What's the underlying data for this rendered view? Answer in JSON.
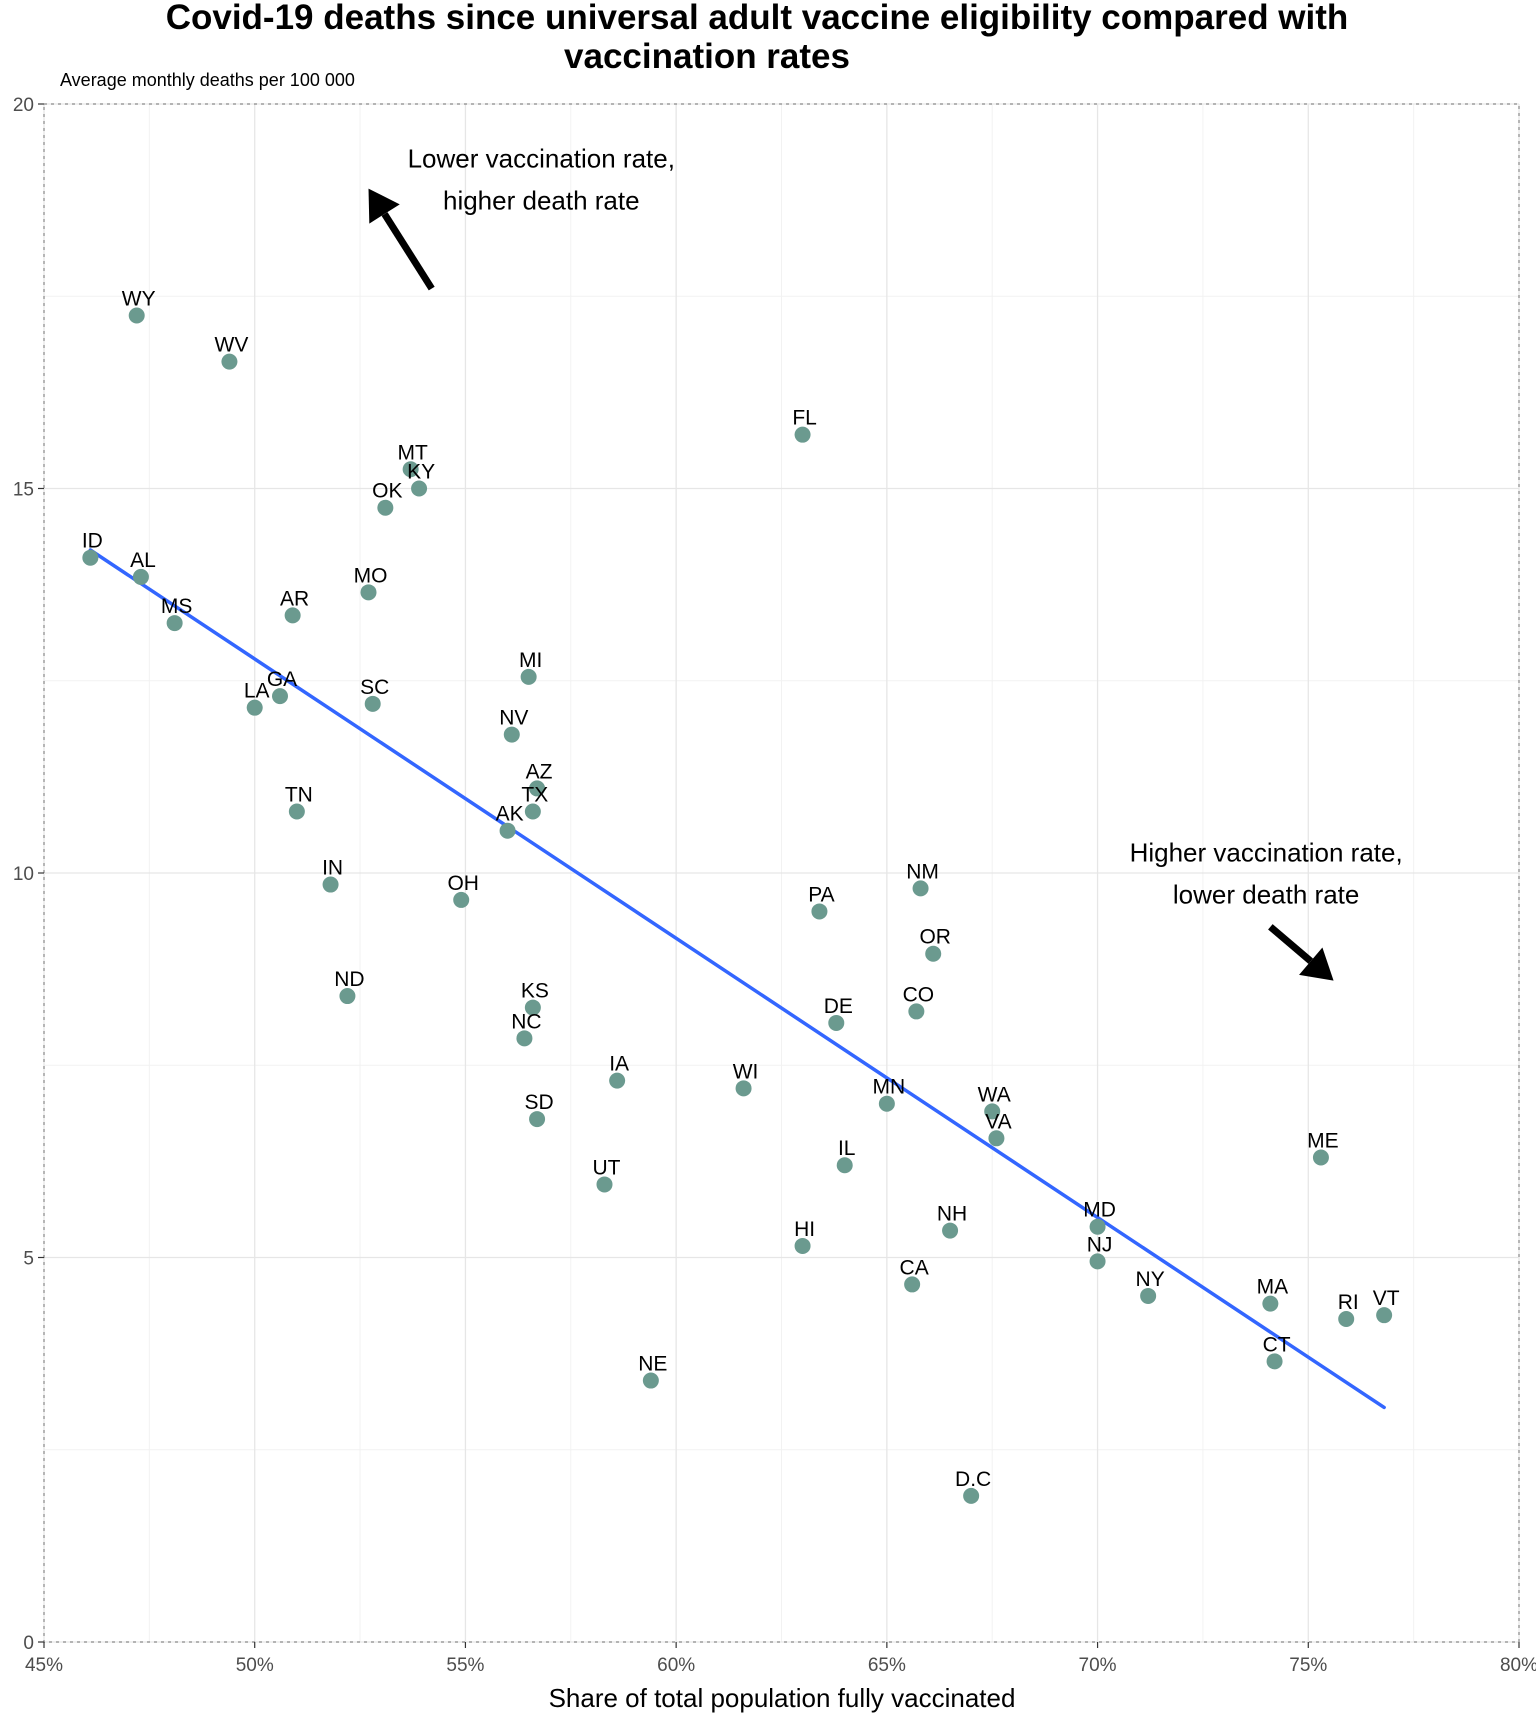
{
  "chart_data": {
    "type": "scatter",
    "title": "Covid-19 deaths since universal adult vaccine eligibility compared with vaccination rates",
    "subtitle": "Average monthly deaths per 100 000",
    "xlabel": "Share of total population fully vaccinated",
    "ylabel": "",
    "xlim": [
      45,
      80
    ],
    "ylim": [
      0,
      20
    ],
    "x_ticks": [
      45,
      50,
      55,
      60,
      65,
      70,
      75,
      80
    ],
    "x_tick_labels": [
      "45%",
      "50%",
      "55%",
      "60%",
      "65%",
      "70%",
      "75%",
      "80%"
    ],
    "y_ticks": [
      0,
      5,
      10,
      15,
      20
    ],
    "y_tick_labels": [
      "0",
      "5",
      "10",
      "15",
      "20"
    ],
    "grid": true,
    "point_color": "#6b9a8f",
    "line_color": "#3366ff",
    "points": [
      {
        "label": "WY",
        "x": 47.2,
        "y": 17.25
      },
      {
        "label": "WV",
        "x": 49.4,
        "y": 16.65
      },
      {
        "label": "FL",
        "x": 63.0,
        "y": 15.7
      },
      {
        "label": "MT",
        "x": 53.7,
        "y": 15.25
      },
      {
        "label": "KY",
        "x": 53.9,
        "y": 15.0
      },
      {
        "label": "OK",
        "x": 53.1,
        "y": 14.75
      },
      {
        "label": "ID",
        "x": 46.1,
        "y": 14.1
      },
      {
        "label": "AL",
        "x": 47.3,
        "y": 13.85
      },
      {
        "label": "MO",
        "x": 52.7,
        "y": 13.65
      },
      {
        "label": "MS",
        "x": 48.1,
        "y": 13.25
      },
      {
        "label": "AR",
        "x": 50.9,
        "y": 13.35
      },
      {
        "label": "MI",
        "x": 56.5,
        "y": 12.55
      },
      {
        "label": "GA",
        "x": 50.6,
        "y": 12.3
      },
      {
        "label": "SC",
        "x": 52.8,
        "y": 12.2
      },
      {
        "label": "LA",
        "x": 50.0,
        "y": 12.15
      },
      {
        "label": "NV",
        "x": 56.1,
        "y": 11.8
      },
      {
        "label": "AZ",
        "x": 56.7,
        "y": 11.1
      },
      {
        "label": "TX",
        "x": 56.6,
        "y": 10.8
      },
      {
        "label": "TN",
        "x": 51.0,
        "y": 10.8
      },
      {
        "label": "AK",
        "x": 56.0,
        "y": 10.55
      },
      {
        "label": "IN",
        "x": 51.8,
        "y": 9.85
      },
      {
        "label": "NM",
        "x": 65.8,
        "y": 9.8
      },
      {
        "label": "OH",
        "x": 54.9,
        "y": 9.65
      },
      {
        "label": "PA",
        "x": 63.4,
        "y": 9.5
      },
      {
        "label": "OR",
        "x": 66.1,
        "y": 8.95
      },
      {
        "label": "ND",
        "x": 52.2,
        "y": 8.4
      },
      {
        "label": "KS",
        "x": 56.6,
        "y": 8.25
      },
      {
        "label": "CO",
        "x": 65.7,
        "y": 8.2
      },
      {
        "label": "DE",
        "x": 63.8,
        "y": 8.05
      },
      {
        "label": "NC",
        "x": 56.4,
        "y": 7.85
      },
      {
        "label": "IA",
        "x": 58.6,
        "y": 7.3
      },
      {
        "label": "WI",
        "x": 61.6,
        "y": 7.2
      },
      {
        "label": "MN",
        "x": 65.0,
        "y": 7.0
      },
      {
        "label": "WA",
        "x": 67.5,
        "y": 6.9
      },
      {
        "label": "SD",
        "x": 56.7,
        "y": 6.8
      },
      {
        "label": "VA",
        "x": 67.6,
        "y": 6.55
      },
      {
        "label": "ME",
        "x": 75.3,
        "y": 6.3
      },
      {
        "label": "IL",
        "x": 64.0,
        "y": 6.2
      },
      {
        "label": "UT",
        "x": 58.3,
        "y": 5.95
      },
      {
        "label": "MD",
        "x": 70.0,
        "y": 5.4
      },
      {
        "label": "NH",
        "x": 66.5,
        "y": 5.35
      },
      {
        "label": "HI",
        "x": 63.0,
        "y": 5.15
      },
      {
        "label": "NJ",
        "x": 70.0,
        "y": 4.95
      },
      {
        "label": "CA",
        "x": 65.6,
        "y": 4.65
      },
      {
        "label": "NY",
        "x": 71.2,
        "y": 4.5
      },
      {
        "label": "MA",
        "x": 74.1,
        "y": 4.4
      },
      {
        "label": "VT",
        "x": 76.8,
        "y": 4.25
      },
      {
        "label": "RI",
        "x": 75.9,
        "y": 4.2
      },
      {
        "label": "CT",
        "x": 74.2,
        "y": 3.65
      },
      {
        "label": "NE",
        "x": 59.4,
        "y": 3.4
      },
      {
        "label": "D.C",
        "x": 67.0,
        "y": 1.9
      }
    ],
    "trend_line": {
      "x1": 46.1,
      "y1": 14.2,
      "x2": 76.8,
      "y2": 3.05
    },
    "annotations": [
      {
        "text_lines": [
          "Lower vaccination rate,",
          "higher death rate"
        ],
        "arrow_direction": "up-left"
      },
      {
        "text_lines": [
          "Higher vaccination rate,",
          "lower death rate"
        ],
        "arrow_direction": "down-right"
      }
    ]
  }
}
